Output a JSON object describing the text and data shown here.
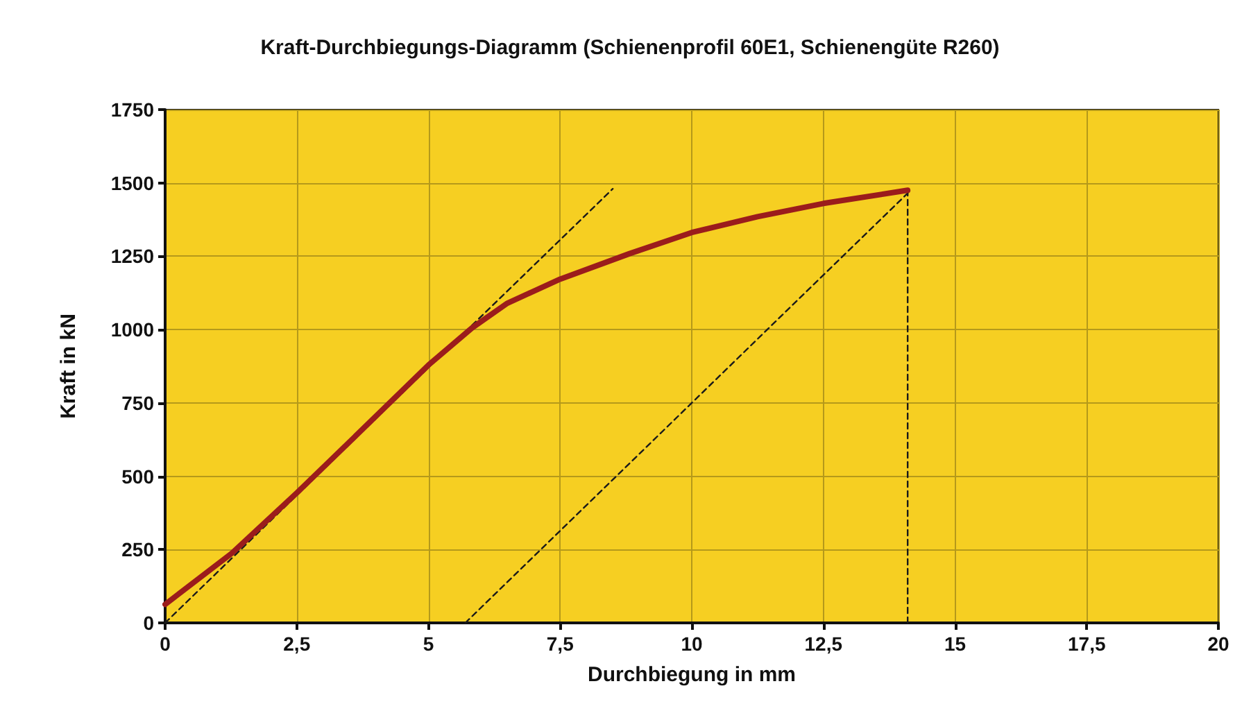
{
  "chart_data": {
    "type": "line",
    "title": "Kraft-Durchbiegungs-Diagramm (Schienenprofil 60E1, Schienengüte R260)",
    "xlabel": "Durchbiegung in mm",
    "ylabel": "Kraft in kN",
    "xlim": [
      0,
      20
    ],
    "xticks": [
      0,
      {
        "value": 2.5,
        "label": "2,5"
      },
      5,
      {
        "value": 7.5,
        "label": "7,5"
      },
      10,
      {
        "value": 12.5,
        "label": "12,5"
      },
      15,
      {
        "value": 17.5,
        "label": "17,5"
      },
      20
    ],
    "ylim": [
      0,
      1750
    ],
    "yticks": [
      0,
      250,
      500,
      750,
      1000,
      1250,
      1500,
      1750
    ],
    "grid": true,
    "marker": "none",
    "series": [
      {
        "color": "#9b1c1c",
        "line_style": "solid",
        "x": [
          0,
          1.27,
          2.5,
          3.73,
          5,
          5.83,
          6.5,
          7.5,
          8.82,
          10,
          11.25,
          12.5,
          14.1
        ],
        "values": [
          63,
          238,
          443,
          657,
          879,
          1006,
          1090,
          1172,
          1259,
          1331,
          1385,
          1430,
          1475
        ]
      },
      {
        "color": "#1a1a1a",
        "line_style": "dashed",
        "x": [
          0,
          8.5
        ],
        "values": [
          0,
          1480
        ]
      },
      {
        "color": "#1a1a1a",
        "line_style": "dashed",
        "x": [
          5.7,
          14.1
        ],
        "values": [
          0,
          1465
        ]
      },
      {
        "color": "#1a1a1a",
        "line_style": "dashed",
        "x": [
          14.1,
          14.1
        ],
        "values": [
          0,
          1465
        ]
      }
    ]
  }
}
